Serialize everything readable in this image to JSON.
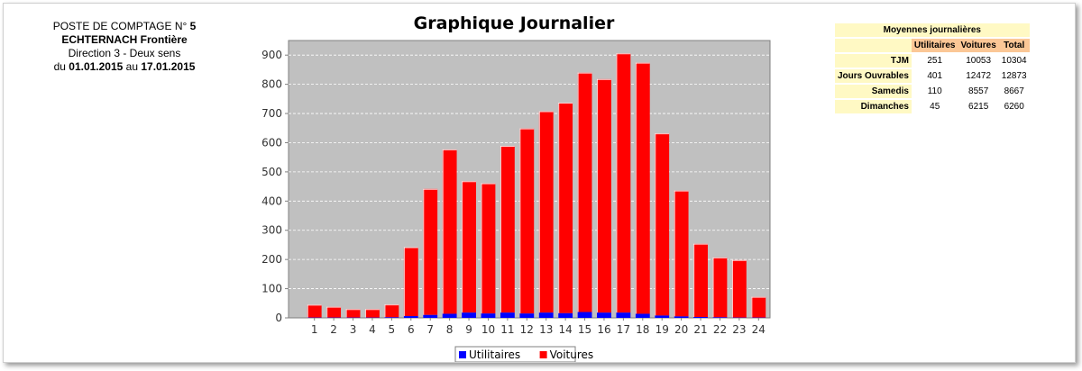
{
  "station": {
    "line1_prefix": "POSTE DE COMPTAGE N°",
    "number": "5",
    "name": "ECHTERNACH Frontière",
    "direction": "Direction 3 - Deux sens",
    "period_prefix": "du",
    "date_from": "01.01.2015",
    "period_mid": "au",
    "date_to": "17.01.2015"
  },
  "chart_data": {
    "type": "bar",
    "stacked": true,
    "title": "Graphique Journalier",
    "categories": [
      "1",
      "2",
      "3",
      "4",
      "5",
      "6",
      "7",
      "8",
      "9",
      "10",
      "11",
      "12",
      "13",
      "14",
      "15",
      "16",
      "17",
      "18",
      "19",
      "20",
      "21",
      "22",
      "23",
      "24"
    ],
    "series": [
      {
        "name": "Utilitaires",
        "color": "#0000ff",
        "values": [
          1,
          1,
          1,
          1,
          2,
          6,
          10,
          14,
          18,
          15,
          18,
          15,
          18,
          16,
          20,
          18,
          18,
          14,
          8,
          5,
          3,
          2,
          1,
          1
        ]
      },
      {
        "name": "Voitures",
        "color": "#ff0000",
        "values": [
          44,
          37,
          29,
          29,
          44,
          236,
          432,
          563,
          450,
          446,
          571,
          634,
          690,
          721,
          820,
          800,
          888,
          860,
          624,
          431,
          251,
          205,
          197,
          71
        ]
      }
    ],
    "ylim": [
      0,
      950
    ],
    "yticks": [
      0,
      100,
      200,
      300,
      400,
      500,
      600,
      700,
      800,
      900
    ],
    "plot_background": "#c0c0c0",
    "grid": true,
    "legend_position": "bottom"
  },
  "averages": {
    "title": "Moyennes journalières",
    "columns": [
      "Utilitaires",
      "Voitures",
      "Total"
    ],
    "rows": [
      {
        "label": "TJM",
        "values": [
          "251",
          "10053",
          "10304"
        ]
      },
      {
        "label": "Jours Ouvrables",
        "values": [
          "401",
          "12472",
          "12873"
        ]
      },
      {
        "label": "Samedis",
        "values": [
          "110",
          "8557",
          "8667"
        ]
      },
      {
        "label": "Dimanches",
        "values": [
          "45",
          "6215",
          "6260"
        ]
      }
    ]
  }
}
